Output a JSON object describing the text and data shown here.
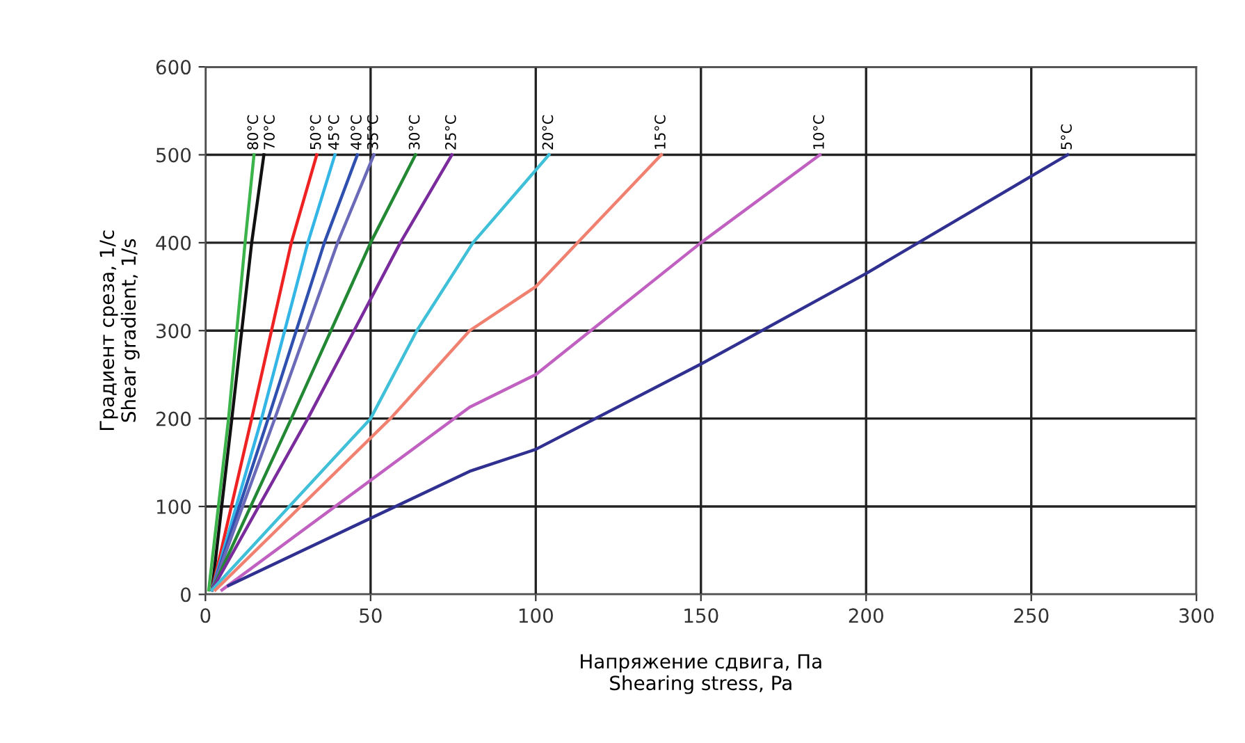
{
  "chart_data": {
    "type": "line",
    "xlabel": "Напряжение сдвига, Па\nShearing stress, Pa",
    "ylabel": "Градиент среза, 1/с\nShear gradient, 1/s",
    "xlim": [
      0,
      300
    ],
    "xticks": [
      0,
      50,
      100,
      150,
      200,
      250,
      300
    ],
    "ylim": [
      0,
      600
    ],
    "yticks": [
      0,
      100,
      200,
      300,
      400,
      500,
      600
    ],
    "grid": true,
    "legend": false,
    "marker": "none",
    "line_style": "solid",
    "series": [
      {
        "name": "80°C",
        "color": "#3cb44b",
        "x": [
          1,
          7,
          12,
          14.7
        ],
        "values": [
          5,
          200,
          400,
          500
        ]
      },
      {
        "name": "70°C",
        "color": "#111111",
        "x": [
          2,
          8,
          14,
          17.7
        ],
        "values": [
          5,
          200,
          400,
          500
        ]
      },
      {
        "name": "50°C",
        "color": "#ee2222",
        "x": [
          2,
          14,
          26,
          33.7
        ],
        "values": [
          5,
          200,
          400,
          500
        ]
      },
      {
        "name": "45°C",
        "color": "#33b5e5",
        "x": [
          2,
          17,
          31,
          39.2
        ],
        "values": [
          5,
          200,
          400,
          500
        ]
      },
      {
        "name": "40°C",
        "color": "#3050b0",
        "x": [
          2,
          19,
          36,
          46
        ],
        "values": [
          5,
          200,
          400,
          500
        ]
      },
      {
        "name": "35°C",
        "color": "#6a6ab8",
        "x": [
          2,
          21,
          40,
          51
        ],
        "values": [
          5,
          200,
          400,
          500
        ]
      },
      {
        "name": "30°C",
        "color": "#228833",
        "x": [
          2,
          26,
          50,
          63.6
        ],
        "values": [
          5,
          200,
          400,
          500
        ]
      },
      {
        "name": "25°C",
        "color": "#7b2c9c",
        "x": [
          2,
          31,
          59,
          74.6
        ],
        "values": [
          5,
          200,
          400,
          500
        ]
      },
      {
        "name": "20°C",
        "color": "#40c0d8",
        "x": [
          2,
          50,
          64,
          81,
          104
        ],
        "values": [
          5,
          200,
          300,
          400,
          500
        ]
      },
      {
        "name": "15°C",
        "color": "#f08070",
        "x": [
          3,
          56,
          80,
          100,
          138
        ],
        "values": [
          5,
          200,
          300,
          350,
          500
        ]
      },
      {
        "name": "10°C",
        "color": "#c060c0",
        "x": [
          5,
          80,
          100,
          150,
          186
        ],
        "values": [
          5,
          213,
          250,
          400,
          500
        ]
      },
      {
        "name": "5°C",
        "color": "#303090",
        "x": [
          7,
          80,
          100,
          150,
          200,
          261
        ],
        "values": [
          10,
          140,
          165,
          262,
          365,
          500
        ]
      }
    ]
  }
}
